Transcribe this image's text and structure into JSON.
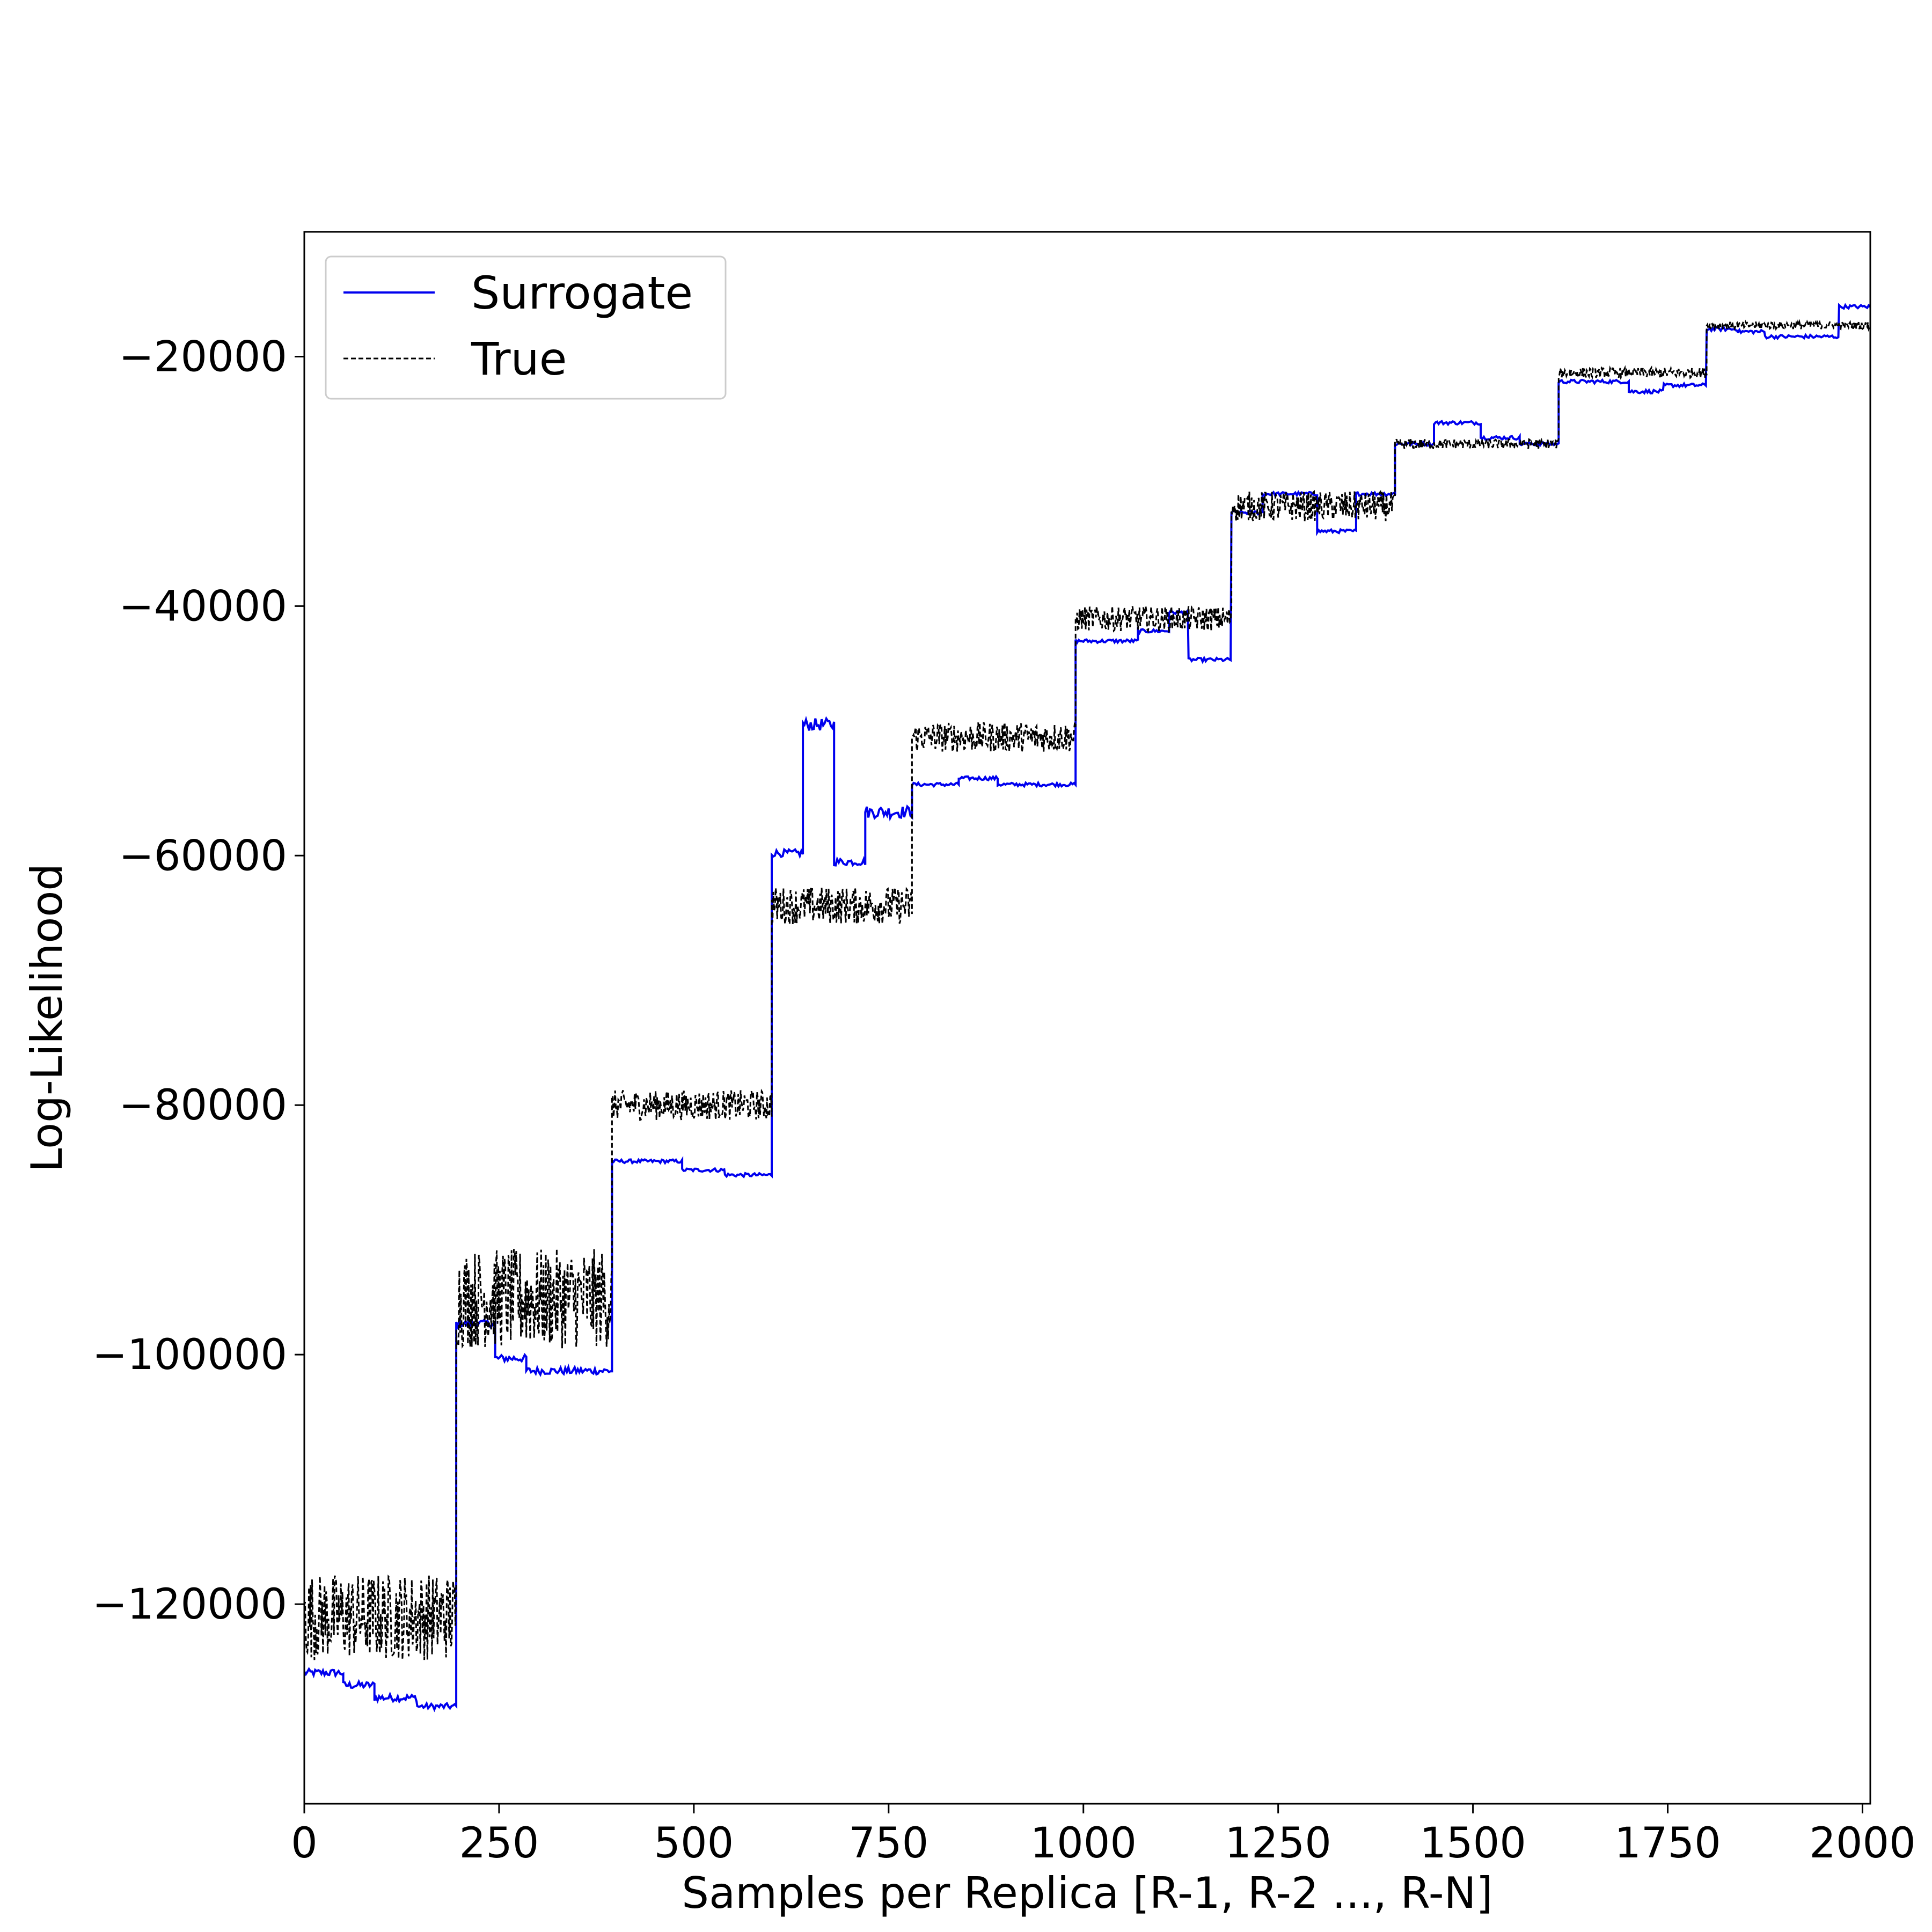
{
  "chart_data": {
    "type": "line",
    "title": "",
    "xlabel": "Samples per Replica [R-1, R-2 ..., R-N]",
    "ylabel": "Log-Likelihood",
    "xlim": [
      0,
      2010
    ],
    "ylim": [
      -136000,
      -10000
    ],
    "xticks": [
      0,
      250,
      500,
      750,
      1000,
      1250,
      1500,
      1750,
      2000
    ],
    "yticks": [
      -120000,
      -100000,
      -80000,
      -60000,
      -40000,
      -20000
    ],
    "grid": false,
    "legend_position": "upper-left",
    "series": [
      {
        "name": "Surrogate",
        "color": "#0000ee",
        "style": "solid",
        "segments": [
          {
            "x0": 0,
            "x1": 50,
            "y": -125500,
            "noise": 300
          },
          {
            "x0": 50,
            "x1": 90,
            "y": -126500,
            "noise": 300
          },
          {
            "x0": 90,
            "x1": 145,
            "y": -127500,
            "noise": 300
          },
          {
            "x0": 145,
            "x1": 195,
            "y": -128200,
            "noise": 250
          },
          {
            "x0": 195,
            "x1": 245,
            "y": -97500,
            "noise": 300
          },
          {
            "x0": 245,
            "x1": 285,
            "y": -100300,
            "noise": 300
          },
          {
            "x0": 285,
            "x1": 395,
            "y": -101300,
            "noise": 300
          },
          {
            "x0": 395,
            "x1": 485,
            "y": -84500,
            "noise": 150
          },
          {
            "x0": 485,
            "x1": 540,
            "y": -85200,
            "noise": 150
          },
          {
            "x0": 540,
            "x1": 600,
            "y": -85600,
            "noise": 150
          },
          {
            "x0": 600,
            "x1": 640,
            "y": -59800,
            "noise": 300
          },
          {
            "x0": 640,
            "x1": 680,
            "y": -49500,
            "noise": 500
          },
          {
            "x0": 680,
            "x1": 720,
            "y": -60500,
            "noise": 300
          },
          {
            "x0": 720,
            "x1": 780,
            "y": -56500,
            "noise": 500
          },
          {
            "x0": 780,
            "x1": 840,
            "y": -54300,
            "noise": 150
          },
          {
            "x0": 840,
            "x1": 890,
            "y": -53800,
            "noise": 150
          },
          {
            "x0": 890,
            "x1": 990,
            "y": -54300,
            "noise": 150
          },
          {
            "x0": 990,
            "x1": 1070,
            "y": -42800,
            "noise": 150
          },
          {
            "x0": 1070,
            "x1": 1110,
            "y": -42000,
            "noise": 150
          },
          {
            "x0": 1110,
            "x1": 1135,
            "y": -40500,
            "noise": 150
          },
          {
            "x0": 1135,
            "x1": 1190,
            "y": -44300,
            "noise": 150
          },
          {
            "x0": 1190,
            "x1": 1230,
            "y": -32500,
            "noise": 150
          },
          {
            "x0": 1230,
            "x1": 1300,
            "y": -31000,
            "noise": 150
          },
          {
            "x0": 1300,
            "x1": 1350,
            "y": -34000,
            "noise": 150
          },
          {
            "x0": 1350,
            "x1": 1400,
            "y": -31000,
            "noise": 150
          },
          {
            "x0": 1400,
            "x1": 1450,
            "y": -27000,
            "noise": 150
          },
          {
            "x0": 1450,
            "x1": 1510,
            "y": -25300,
            "noise": 150
          },
          {
            "x0": 1510,
            "x1": 1560,
            "y": -26500,
            "noise": 150
          },
          {
            "x0": 1560,
            "x1": 1610,
            "y": -27000,
            "noise": 150
          },
          {
            "x0": 1610,
            "x1": 1700,
            "y": -22000,
            "noise": 150
          },
          {
            "x0": 1700,
            "x1": 1745,
            "y": -22800,
            "noise": 150
          },
          {
            "x0": 1745,
            "x1": 1800,
            "y": -22300,
            "noise": 150
          },
          {
            "x0": 1800,
            "x1": 1840,
            "y": -17800,
            "noise": 150
          },
          {
            "x0": 1840,
            "x1": 1875,
            "y": -18000,
            "noise": 150
          },
          {
            "x0": 1875,
            "x1": 1970,
            "y": -18400,
            "noise": 150
          },
          {
            "x0": 1970,
            "x1": 2010,
            "y": -16000,
            "noise": 150
          }
        ]
      },
      {
        "name": "True",
        "color": "#000000",
        "style": "dashed",
        "segments": [
          {
            "x0": 0,
            "x1": 195,
            "y": -121000,
            "noise": 3500
          },
          {
            "x0": 195,
            "x1": 395,
            "y": -95500,
            "noise": 4000
          },
          {
            "x0": 395,
            "x1": 600,
            "y": -80000,
            "noise": 1200
          },
          {
            "x0": 600,
            "x1": 780,
            "y": -64000,
            "noise": 1500
          },
          {
            "x0": 780,
            "x1": 990,
            "y": -50500,
            "noise": 1200
          },
          {
            "x0": 990,
            "x1": 1190,
            "y": -41000,
            "noise": 1000
          },
          {
            "x0": 1190,
            "x1": 1400,
            "y": -32000,
            "noise": 1200
          },
          {
            "x0": 1400,
            "x1": 1610,
            "y": -27000,
            "noise": 400
          },
          {
            "x0": 1610,
            "x1": 1800,
            "y": -21300,
            "noise": 400
          },
          {
            "x0": 1800,
            "x1": 2010,
            "y": -17500,
            "noise": 300
          }
        ]
      }
    ]
  }
}
